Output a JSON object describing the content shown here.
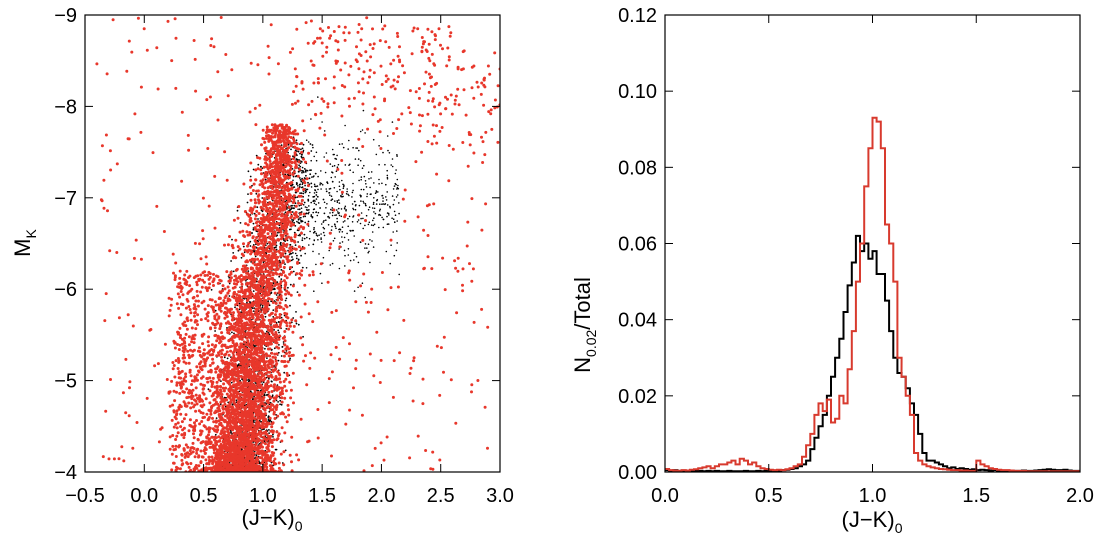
{
  "chart_data": [
    {
      "type": "scatter",
      "xlabel": "(J−K)",
      "xlabel_sub": "0",
      "ylabel": "M",
      "ylabel_sub": "K",
      "xlim": [
        -0.5,
        3.0
      ],
      "ylim": [
        -4,
        -9
      ],
      "y_inverted": true,
      "xticks": [
        -0.5,
        0.0,
        0.5,
        1.0,
        1.5,
        2.0,
        2.5,
        3.0
      ],
      "xtick_labels": [
        "−0.5",
        "0.0",
        "0.5",
        "1.0",
        "1.5",
        "2.0",
        "2.5",
        "3.0"
      ],
      "yticks": [
        -4,
        -5,
        -6,
        -7,
        -8,
        -9
      ],
      "ytick_labels": [
        "−4",
        "−5",
        "−6",
        "−7",
        "−8",
        "−9"
      ],
      "series": [
        {
          "color": "#000000",
          "marker": "dot",
          "ridge": [
            {
              "mk": -4.0,
              "jk": 0.85,
              "spread": 0.1
            },
            {
              "mk": -5.0,
              "jk": 0.9,
              "spread": 0.12
            },
            {
              "mk": -6.0,
              "jk": 1.0,
              "spread": 0.13
            },
            {
              "mk": -7.0,
              "jk": 1.2,
              "spread": 0.15
            },
            {
              "mk": -7.6,
              "jk": 1.2,
              "spread": 0.1
            }
          ],
          "branch": [
            {
              "jk": 1.3,
              "mk": -7.0
            },
            {
              "jk": 1.5,
              "mk": -6.9
            },
            {
              "jk": 1.8,
              "mk": -6.9
            },
            {
              "jk": 2.0,
              "mk": -6.9
            }
          ]
        },
        {
          "color": "#e8372b",
          "marker": "dot",
          "ridge": [
            {
              "mk": -4.0,
              "jk": 0.8,
              "spread": 0.15
            },
            {
              "mk": -5.0,
              "jk": 0.88,
              "spread": 0.14
            },
            {
              "mk": -6.0,
              "jk": 0.98,
              "spread": 0.13
            },
            {
              "mk": -7.0,
              "jk": 1.12,
              "spread": 0.1
            },
            {
              "mk": -7.8,
              "jk": 1.15,
              "spread": 0.06
            }
          ],
          "plume": [
            {
              "mk": -4.0,
              "jk": 0.25
            },
            {
              "mk": -5.0,
              "jk": 0.35
            },
            {
              "mk": -6.0,
              "jk": 0.6
            }
          ],
          "upper_branch": [
            {
              "jk": 1.3,
              "mk": -8.3
            },
            {
              "jk": 1.7,
              "mk": -8.6
            },
            {
              "jk": 2.0,
              "mk": -8.5
            },
            {
              "jk": 2.5,
              "mk": -8.2
            },
            {
              "jk": 2.9,
              "mk": -8.0
            }
          ]
        }
      ]
    },
    {
      "type": "line",
      "step": true,
      "xlabel": "(J−K)",
      "xlabel_sub": "0",
      "ylabel": "N",
      "ylabel_sub": "0.02",
      "ylabel_tail": "/Total",
      "xlim": [
        0.0,
        2.0
      ],
      "ylim": [
        0.0,
        0.12
      ],
      "xticks": [
        0.0,
        0.5,
        1.0,
        1.5,
        2.0
      ],
      "xtick_labels": [
        "0.0",
        "0.5",
        "1.0",
        "1.5",
        "2.0"
      ],
      "yticks": [
        0.0,
        0.02,
        0.04,
        0.06,
        0.08,
        0.1,
        0.12
      ],
      "ytick_labels": [
        "0.00",
        "0.02",
        "0.04",
        "0.06",
        "0.08",
        "0.10",
        "0.12"
      ],
      "bin_width": 0.02,
      "series": [
        {
          "color": "#000000",
          "x": [
            0.0,
            0.02,
            0.04,
            0.06,
            0.08,
            0.1,
            0.12,
            0.14,
            0.16,
            0.18,
            0.2,
            0.22,
            0.24,
            0.26,
            0.28,
            0.3,
            0.32,
            0.34,
            0.36,
            0.38,
            0.4,
            0.42,
            0.44,
            0.46,
            0.48,
            0.5,
            0.52,
            0.54,
            0.56,
            0.58,
            0.6,
            0.62,
            0.64,
            0.66,
            0.68,
            0.7,
            0.72,
            0.74,
            0.76,
            0.78,
            0.8,
            0.82,
            0.84,
            0.86,
            0.88,
            0.9,
            0.92,
            0.94,
            0.96,
            0.98,
            1.0,
            1.02,
            1.04,
            1.06,
            1.08,
            1.1,
            1.12,
            1.14,
            1.16,
            1.18,
            1.2,
            1.22,
            1.24,
            1.26,
            1.28,
            1.3,
            1.32,
            1.34,
            1.36,
            1.38,
            1.4,
            1.42,
            1.44,
            1.46,
            1.48,
            1.5,
            1.52,
            1.54,
            1.56,
            1.58,
            1.6,
            1.62,
            1.64,
            1.66,
            1.68,
            1.7,
            1.72,
            1.74,
            1.76,
            1.78,
            1.8,
            1.82,
            1.84,
            1.86,
            1.88,
            1.9,
            1.92,
            1.94,
            1.96,
            1.98
          ],
          "y": [
            0.0005,
            0.0004,
            0.0005,
            0.0003,
            0.0004,
            0.0003,
            0.0004,
            0.0003,
            0.0003,
            0.0002,
            0.0003,
            0.0002,
            0.0003,
            0.0002,
            0.0002,
            0.0003,
            0.0002,
            0.0002,
            0.0002,
            0.0003,
            0.0002,
            0.0002,
            0.0003,
            0.0002,
            0.0003,
            0.0003,
            0.0004,
            0.0004,
            0.0005,
            0.0006,
            0.0008,
            0.001,
            0.0015,
            0.002,
            0.003,
            0.006,
            0.009,
            0.012,
            0.015,
            0.02,
            0.025,
            0.03,
            0.035,
            0.042,
            0.049,
            0.055,
            0.062,
            0.058,
            0.06,
            0.056,
            0.058,
            0.052,
            0.052,
            0.045,
            0.037,
            0.03,
            0.026,
            0.025,
            0.022,
            0.018,
            0.015,
            0.01,
            0.005,
            0.003,
            0.003,
            0.0025,
            0.002,
            0.0015,
            0.001,
            0.0012,
            0.0008,
            0.001,
            0.0008,
            0.0006,
            0.0007,
            0.0005,
            0.0006,
            0.0005,
            0.0004,
            0.0005,
            0.0004,
            0.0004,
            0.0003,
            0.0004,
            0.0003,
            0.0003,
            0.0004,
            0.0003,
            0.0003,
            0.0004,
            0.0005,
            0.0006,
            0.0007,
            0.0006,
            0.0005,
            0.0005,
            0.0006,
            0.0004,
            0.0003,
            0.0003
          ]
        },
        {
          "color": "#d83a2e",
          "x": [
            0.0,
            0.02,
            0.04,
            0.06,
            0.08,
            0.1,
            0.12,
            0.14,
            0.16,
            0.18,
            0.2,
            0.22,
            0.24,
            0.26,
            0.28,
            0.3,
            0.32,
            0.34,
            0.36,
            0.38,
            0.4,
            0.42,
            0.44,
            0.46,
            0.48,
            0.5,
            0.52,
            0.54,
            0.56,
            0.58,
            0.6,
            0.62,
            0.64,
            0.66,
            0.68,
            0.7,
            0.72,
            0.74,
            0.76,
            0.78,
            0.8,
            0.82,
            0.84,
            0.86,
            0.88,
            0.9,
            0.92,
            0.94,
            0.96,
            0.98,
            1.0,
            1.02,
            1.04,
            1.06,
            1.08,
            1.1,
            1.12,
            1.14,
            1.16,
            1.18,
            1.2,
            1.22,
            1.24,
            1.26,
            1.28,
            1.3,
            1.32,
            1.34,
            1.36,
            1.38,
            1.4,
            1.42,
            1.44,
            1.46,
            1.48,
            1.5,
            1.52,
            1.54,
            1.56,
            1.58,
            1.6,
            1.62,
            1.64,
            1.66,
            1.68,
            1.7,
            1.72,
            1.74,
            1.76,
            1.78,
            1.8,
            1.82,
            1.84,
            1.86,
            1.88,
            1.9,
            1.92,
            1.94,
            1.96,
            1.98
          ],
          "y": [
            0.0008,
            0.0005,
            0.0004,
            0.0003,
            0.0005,
            0.0004,
            0.0006,
            0.0007,
            0.001,
            0.0012,
            0.0015,
            0.001,
            0.0015,
            0.002,
            0.002,
            0.0025,
            0.003,
            0.002,
            0.0035,
            0.003,
            0.002,
            0.0025,
            0.0015,
            0.001,
            0.0008,
            0.0006,
            0.0005,
            0.0006,
            0.0005,
            0.0007,
            0.001,
            0.0015,
            0.002,
            0.004,
            0.007,
            0.01,
            0.015,
            0.018,
            0.016,
            0.019,
            0.013,
            0.014,
            0.02,
            0.018,
            0.027,
            0.037,
            0.05,
            0.06,
            0.075,
            0.085,
            0.093,
            0.092,
            0.085,
            0.065,
            0.06,
            0.05,
            0.03,
            0.025,
            0.02,
            0.015,
            0.005,
            0.003,
            0.002,
            0.0015,
            0.0012,
            0.001,
            0.0008,
            0.0007,
            0.0006,
            0.0005,
            0.0005,
            0.0004,
            0.0004,
            0.0003,
            0.0003,
            0.003,
            0.002,
            0.0015,
            0.001,
            0.0008,
            0.0006,
            0.0005,
            0.0005,
            0.0004,
            0.0003,
            0.0003,
            0.0003,
            0.0002,
            0.0002,
            0.0002,
            0.0002,
            0.0002,
            0.0002,
            0.0002,
            0.0002,
            0.0002,
            0.0002,
            0.0002,
            0.0002,
            0.0002
          ]
        }
      ]
    }
  ]
}
